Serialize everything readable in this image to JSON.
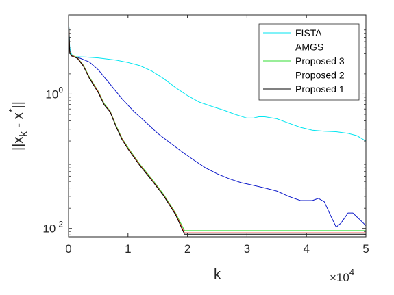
{
  "chart_data": {
    "type": "line",
    "title": "",
    "xlabel": "k",
    "ylabel": "||x_k - x^*||",
    "ylabel_parts": {
      "base": "||x",
      "sub": "k",
      "mid": " - x",
      "sup": "*",
      "end": "||"
    },
    "x_multiplier": {
      "base": "×10",
      "exp": "4"
    },
    "xlim": [
      0,
      5
    ],
    "ylim": [
      0.0075,
      15
    ],
    "yscale": "log",
    "grid": false,
    "legend_position": "top-right",
    "xticks": [
      {
        "value": 0,
        "label": "0"
      },
      {
        "value": 1,
        "label": "1"
      },
      {
        "value": 2,
        "label": "2"
      },
      {
        "value": 3,
        "label": "3"
      },
      {
        "value": 4,
        "label": "4"
      },
      {
        "value": 5,
        "label": "5"
      }
    ],
    "yticks": [
      {
        "value": 1,
        "base": "10",
        "exp": "0"
      },
      {
        "value": 0.01,
        "base": "10",
        "exp": "-2"
      }
    ],
    "series": [
      {
        "name": "FISTA",
        "color": "#00e5f0",
        "points": [
          [
            0,
            14
          ],
          [
            0.02,
            5
          ],
          [
            0.05,
            3.9
          ],
          [
            0.1,
            3.6
          ],
          [
            0.3,
            3.55
          ],
          [
            0.5,
            3.45
          ],
          [
            0.8,
            3.2
          ],
          [
            1.0,
            2.95
          ],
          [
            1.2,
            2.65
          ],
          [
            1.4,
            2.2
          ],
          [
            1.6,
            1.7
          ],
          [
            1.8,
            1.25
          ],
          [
            2.0,
            0.95
          ],
          [
            2.2,
            0.76
          ],
          [
            2.4,
            0.66
          ],
          [
            2.6,
            0.58
          ],
          [
            2.8,
            0.5
          ],
          [
            3.0,
            0.44
          ],
          [
            3.1,
            0.44
          ],
          [
            3.2,
            0.46
          ],
          [
            3.3,
            0.46
          ],
          [
            3.5,
            0.43
          ],
          [
            3.7,
            0.37
          ],
          [
            3.9,
            0.32
          ],
          [
            4.1,
            0.29
          ],
          [
            4.3,
            0.28
          ],
          [
            4.5,
            0.275
          ],
          [
            4.7,
            0.26
          ],
          [
            4.85,
            0.24
          ],
          [
            5.0,
            0.2
          ]
        ]
      },
      {
        "name": "AMGS",
        "color": "#0a17c9",
        "points": [
          [
            0,
            14
          ],
          [
            0.02,
            4.5
          ],
          [
            0.05,
            3.7
          ],
          [
            0.2,
            3.4
          ],
          [
            0.35,
            3.0
          ],
          [
            0.5,
            2.3
          ],
          [
            0.7,
            1.4
          ],
          [
            0.9,
            0.85
          ],
          [
            1.1,
            0.55
          ],
          [
            1.3,
            0.38
          ],
          [
            1.5,
            0.26
          ],
          [
            1.7,
            0.19
          ],
          [
            1.9,
            0.14
          ],
          [
            2.1,
            0.105
          ],
          [
            2.3,
            0.08
          ],
          [
            2.5,
            0.065
          ],
          [
            2.7,
            0.055
          ],
          [
            2.9,
            0.048
          ],
          [
            3.1,
            0.044
          ],
          [
            3.3,
            0.04
          ],
          [
            3.5,
            0.036
          ],
          [
            3.7,
            0.03
          ],
          [
            3.9,
            0.026
          ],
          [
            4.1,
            0.026
          ],
          [
            4.2,
            0.028
          ],
          [
            4.3,
            0.025
          ],
          [
            4.4,
            0.016
          ],
          [
            4.5,
            0.0105
          ],
          [
            4.58,
            0.012
          ],
          [
            4.7,
            0.017
          ],
          [
            4.78,
            0.017
          ],
          [
            4.9,
            0.0135
          ],
          [
            5.0,
            0.011
          ]
        ]
      },
      {
        "name": "Proposed 3",
        "color": "#33dd33",
        "points": [
          [
            0,
            14
          ],
          [
            0.02,
            4.3
          ],
          [
            0.05,
            3.8
          ],
          [
            0.15,
            3.5
          ],
          [
            0.25,
            2.7
          ],
          [
            0.35,
            1.8
          ],
          [
            0.5,
            1.1
          ],
          [
            0.6,
            0.72
          ],
          [
            0.7,
            0.56
          ],
          [
            0.8,
            0.34
          ],
          [
            0.9,
            0.22
          ],
          [
            1.0,
            0.16
          ],
          [
            1.2,
            0.09
          ],
          [
            1.4,
            0.055
          ],
          [
            1.6,
            0.032
          ],
          [
            1.8,
            0.017
          ],
          [
            1.95,
            0.0093
          ],
          [
            2.0,
            0.0093
          ],
          [
            5.0,
            0.0093
          ]
        ]
      },
      {
        "name": "Proposed 2",
        "color": "#ff2a2a",
        "points": [
          [
            0,
            14
          ],
          [
            0.02,
            4.2
          ],
          [
            0.05,
            3.75
          ],
          [
            0.15,
            3.45
          ],
          [
            0.25,
            2.65
          ],
          [
            0.35,
            1.75
          ],
          [
            0.5,
            1.08
          ],
          [
            0.6,
            0.7
          ],
          [
            0.7,
            0.55
          ],
          [
            0.8,
            0.33
          ],
          [
            0.9,
            0.215
          ],
          [
            1.0,
            0.155
          ],
          [
            1.2,
            0.088
          ],
          [
            1.4,
            0.053
          ],
          [
            1.6,
            0.031
          ],
          [
            1.8,
            0.0165
          ],
          [
            1.95,
            0.0086
          ],
          [
            2.0,
            0.0086
          ],
          [
            5.0,
            0.0086
          ]
        ]
      },
      {
        "name": "Proposed 1",
        "color": "#000000",
        "points": [
          [
            0,
            14
          ],
          [
            0.02,
            4.1
          ],
          [
            0.05,
            3.7
          ],
          [
            0.15,
            3.4
          ],
          [
            0.25,
            2.6
          ],
          [
            0.35,
            1.72
          ],
          [
            0.5,
            1.05
          ],
          [
            0.6,
            0.69
          ],
          [
            0.7,
            0.54
          ],
          [
            0.8,
            0.325
          ],
          [
            0.9,
            0.21
          ],
          [
            1.0,
            0.152
          ],
          [
            1.2,
            0.086
          ],
          [
            1.4,
            0.052
          ],
          [
            1.6,
            0.0305
          ],
          [
            1.8,
            0.016
          ],
          [
            1.95,
            0.0082
          ],
          [
            2.0,
            0.0082
          ],
          [
            5.0,
            0.0082
          ]
        ]
      }
    ]
  }
}
